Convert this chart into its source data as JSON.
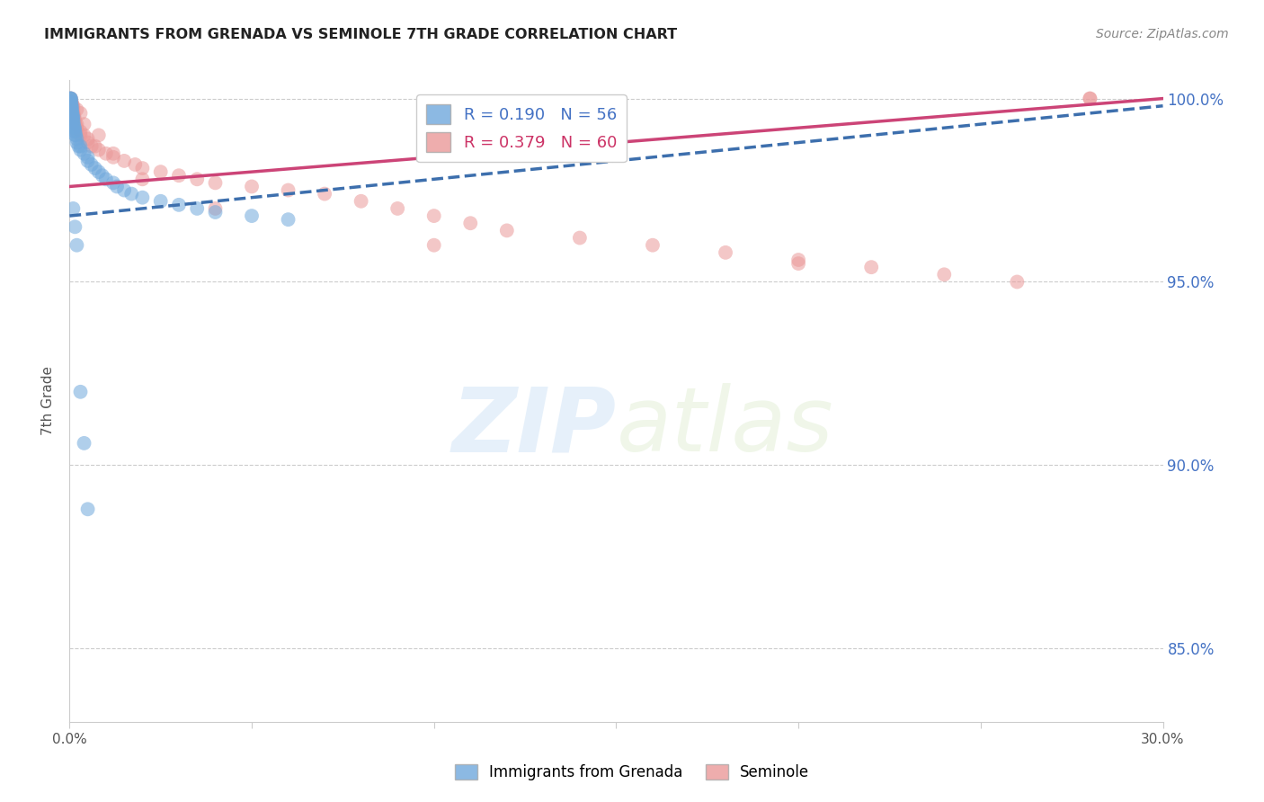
{
  "title": "IMMIGRANTS FROM GRENADA VS SEMINOLE 7TH GRADE CORRELATION CHART",
  "source": "Source: ZipAtlas.com",
  "ylabel": "7th Grade",
  "r_blue": 0.19,
  "n_blue": 56,
  "r_pink": 0.379,
  "n_pink": 60,
  "xlim": [
    0.0,
    0.3
  ],
  "ylim": [
    0.83,
    1.005
  ],
  "yticks": [
    0.85,
    0.9,
    0.95,
    1.0
  ],
  "ytick_labels": [
    "85.0%",
    "90.0%",
    "95.0%",
    "100.0%"
  ],
  "xticks": [
    0.0,
    0.05,
    0.1,
    0.15,
    0.2,
    0.25,
    0.3
  ],
  "xtick_labels": [
    "0.0%",
    "",
    "",
    "",
    "",
    "",
    "30.0%"
  ],
  "blue_color": "#6fa8dc",
  "pink_color": "#ea9999",
  "blue_line_color": "#3d6fad",
  "pink_line_color": "#cc4477",
  "watermark_zip": "ZIP",
  "watermark_atlas": "atlas",
  "blue_x": [
    0.0002,
    0.0003,
    0.0003,
    0.0004,
    0.0004,
    0.0005,
    0.0005,
    0.0005,
    0.0006,
    0.0006,
    0.0007,
    0.0007,
    0.0008,
    0.0008,
    0.0009,
    0.001,
    0.001,
    0.001,
    0.001,
    0.0012,
    0.0013,
    0.0014,
    0.0015,
    0.0015,
    0.0016,
    0.0017,
    0.002,
    0.002,
    0.0025,
    0.003,
    0.003,
    0.004,
    0.005,
    0.005,
    0.006,
    0.007,
    0.008,
    0.009,
    0.01,
    0.012,
    0.013,
    0.015,
    0.017,
    0.02,
    0.025,
    0.03,
    0.035,
    0.04,
    0.05,
    0.06,
    0.001,
    0.0015,
    0.002,
    0.003,
    0.004,
    0.005
  ],
  "blue_y": [
    1.0,
    1.0,
    1.0,
    1.0,
    0.999,
    0.999,
    0.998,
    0.998,
    0.998,
    0.997,
    0.997,
    0.996,
    0.996,
    0.995,
    0.995,
    0.995,
    0.994,
    0.994,
    0.993,
    0.993,
    0.992,
    0.992,
    0.991,
    0.991,
    0.99,
    0.99,
    0.989,
    0.988,
    0.987,
    0.987,
    0.986,
    0.985,
    0.984,
    0.983,
    0.982,
    0.981,
    0.98,
    0.979,
    0.978,
    0.977,
    0.976,
    0.975,
    0.974,
    0.973,
    0.972,
    0.971,
    0.97,
    0.969,
    0.968,
    0.967,
    0.97,
    0.965,
    0.96,
    0.92,
    0.906,
    0.888
  ],
  "pink_x": [
    0.0003,
    0.0004,
    0.0005,
    0.0006,
    0.0007,
    0.0008,
    0.001,
    0.001,
    0.001,
    0.001,
    0.0012,
    0.0013,
    0.0015,
    0.0016,
    0.002,
    0.002,
    0.002,
    0.003,
    0.003,
    0.004,
    0.005,
    0.005,
    0.006,
    0.007,
    0.008,
    0.01,
    0.012,
    0.015,
    0.018,
    0.02,
    0.025,
    0.03,
    0.035,
    0.04,
    0.05,
    0.06,
    0.07,
    0.08,
    0.09,
    0.1,
    0.11,
    0.12,
    0.14,
    0.16,
    0.18,
    0.2,
    0.22,
    0.24,
    0.26,
    0.28,
    0.002,
    0.003,
    0.004,
    0.008,
    0.012,
    0.02,
    0.04,
    0.1,
    0.2,
    0.28
  ],
  "pink_y": [
    1.0,
    1.0,
    0.999,
    0.999,
    0.998,
    0.998,
    0.998,
    0.997,
    0.996,
    0.996,
    0.995,
    0.995,
    0.994,
    0.993,
    0.993,
    0.992,
    0.991,
    0.991,
    0.99,
    0.99,
    0.989,
    0.988,
    0.987,
    0.987,
    0.986,
    0.985,
    0.984,
    0.983,
    0.982,
    0.981,
    0.98,
    0.979,
    0.978,
    0.977,
    0.976,
    0.975,
    0.974,
    0.972,
    0.97,
    0.968,
    0.966,
    0.964,
    0.962,
    0.96,
    0.958,
    0.956,
    0.954,
    0.952,
    0.95,
    1.0,
    0.997,
    0.996,
    0.993,
    0.99,
    0.985,
    0.978,
    0.97,
    0.96,
    0.955,
    1.0
  ],
  "blue_trend_x": [
    0.0,
    0.3
  ],
  "blue_trend_y": [
    0.968,
    0.998
  ],
  "pink_trend_x": [
    0.0,
    0.3
  ],
  "pink_trend_y": [
    0.976,
    1.0
  ]
}
